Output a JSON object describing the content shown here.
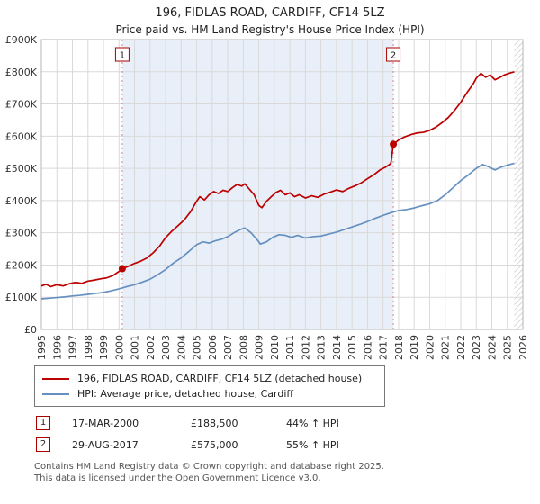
{
  "title": "196, FIDLAS ROAD, CARDIFF, CF14 5LZ",
  "subtitle": "Price paid vs. HM Land Registry's House Price Index (HPI)",
  "chart_data": {
    "type": "line",
    "x_range": [
      1995,
      2026
    ],
    "y_range": [
      0,
      900000
    ],
    "y_tick_step": 100000,
    "y_tick_labels": [
      "£0",
      "£100K",
      "£200K",
      "£300K",
      "£400K",
      "£500K",
      "£600K",
      "£700K",
      "£800K",
      "£900K"
    ],
    "grid": true,
    "legend_position": "bottom",
    "shaded_region": {
      "from": 2000.21,
      "to": 2017.66,
      "color": "#e9eff9"
    },
    "future_band": {
      "from": 2025.45,
      "to": 2026
    },
    "series": [
      {
        "name": "196, FIDLAS ROAD, CARDIFF, CF14 5LZ (detached house)",
        "color": "#bb0000",
        "points": [
          [
            1995.0,
            135000
          ],
          [
            1995.3,
            140000
          ],
          [
            1995.6,
            133000
          ],
          [
            1996.0,
            139000
          ],
          [
            1996.4,
            135000
          ],
          [
            1996.8,
            142000
          ],
          [
            1997.2,
            146000
          ],
          [
            1997.6,
            143000
          ],
          [
            1998.0,
            150000
          ],
          [
            1998.4,
            153000
          ],
          [
            1998.8,
            157000
          ],
          [
            1999.2,
            160000
          ],
          [
            1999.6,
            167000
          ],
          [
            2000.0,
            180000
          ],
          [
            2000.21,
            188500
          ],
          [
            2000.6,
            196000
          ],
          [
            2001.0,
            205000
          ],
          [
            2001.4,
            212000
          ],
          [
            2001.8,
            222000
          ],
          [
            2002.2,
            238000
          ],
          [
            2002.6,
            258000
          ],
          [
            2003.0,
            285000
          ],
          [
            2003.4,
            305000
          ],
          [
            2003.8,
            322000
          ],
          [
            2004.2,
            340000
          ],
          [
            2004.6,
            365000
          ],
          [
            2005.0,
            398000
          ],
          [
            2005.2,
            412000
          ],
          [
            2005.5,
            402000
          ],
          [
            2005.8,
            418000
          ],
          [
            2006.1,
            428000
          ],
          [
            2006.4,
            422000
          ],
          [
            2006.7,
            432000
          ],
          [
            2007.0,
            428000
          ],
          [
            2007.3,
            440000
          ],
          [
            2007.6,
            450000
          ],
          [
            2007.9,
            445000
          ],
          [
            2008.1,
            452000
          ],
          [
            2008.4,
            435000
          ],
          [
            2008.7,
            418000
          ],
          [
            2009.0,
            385000
          ],
          [
            2009.2,
            378000
          ],
          [
            2009.5,
            398000
          ],
          [
            2009.8,
            412000
          ],
          [
            2010.1,
            425000
          ],
          [
            2010.4,
            432000
          ],
          [
            2010.7,
            418000
          ],
          [
            2011.0,
            424000
          ],
          [
            2011.3,
            412000
          ],
          [
            2011.6,
            418000
          ],
          [
            2012.0,
            408000
          ],
          [
            2012.4,
            415000
          ],
          [
            2012.8,
            410000
          ],
          [
            2013.2,
            420000
          ],
          [
            2013.6,
            426000
          ],
          [
            2014.0,
            433000
          ],
          [
            2014.4,
            428000
          ],
          [
            2014.8,
            438000
          ],
          [
            2015.2,
            446000
          ],
          [
            2015.6,
            455000
          ],
          [
            2016.0,
            468000
          ],
          [
            2016.4,
            480000
          ],
          [
            2016.8,
            495000
          ],
          [
            2017.2,
            505000
          ],
          [
            2017.5,
            515000
          ],
          [
            2017.66,
            575000
          ],
          [
            2018.0,
            588000
          ],
          [
            2018.4,
            598000
          ],
          [
            2018.8,
            605000
          ],
          [
            2019.2,
            610000
          ],
          [
            2019.6,
            612000
          ],
          [
            2020.0,
            618000
          ],
          [
            2020.4,
            628000
          ],
          [
            2020.8,
            642000
          ],
          [
            2021.2,
            658000
          ],
          [
            2021.6,
            680000
          ],
          [
            2022.0,
            705000
          ],
          [
            2022.4,
            735000
          ],
          [
            2022.8,
            762000
          ],
          [
            2023.0,
            780000
          ],
          [
            2023.3,
            795000
          ],
          [
            2023.6,
            783000
          ],
          [
            2023.9,
            790000
          ],
          [
            2024.2,
            775000
          ],
          [
            2024.5,
            782000
          ],
          [
            2024.8,
            790000
          ],
          [
            2025.1,
            795000
          ],
          [
            2025.45,
            800000
          ]
        ]
      },
      {
        "name": "HPI: Average price, detached house, Cardiff",
        "color": "#6690c0",
        "points": [
          [
            1995.0,
            95000
          ],
          [
            1995.5,
            97000
          ],
          [
            1996.0,
            99000
          ],
          [
            1996.5,
            101000
          ],
          [
            1997.0,
            104000
          ],
          [
            1997.5,
            106000
          ],
          [
            1998.0,
            109000
          ],
          [
            1998.5,
            112000
          ],
          [
            1999.0,
            115000
          ],
          [
            1999.5,
            120000
          ],
          [
            2000.0,
            126000
          ],
          [
            2000.5,
            133000
          ],
          [
            2001.0,
            139000
          ],
          [
            2001.5,
            147000
          ],
          [
            2002.0,
            156000
          ],
          [
            2002.5,
            170000
          ],
          [
            2003.0,
            186000
          ],
          [
            2003.5,
            206000
          ],
          [
            2004.0,
            222000
          ],
          [
            2004.5,
            242000
          ],
          [
            2005.0,
            263000
          ],
          [
            2005.4,
            272000
          ],
          [
            2005.8,
            268000
          ],
          [
            2006.2,
            275000
          ],
          [
            2006.6,
            280000
          ],
          [
            2007.0,
            288000
          ],
          [
            2007.4,
            300000
          ],
          [
            2007.8,
            310000
          ],
          [
            2008.1,
            315000
          ],
          [
            2008.5,
            300000
          ],
          [
            2008.9,
            278000
          ],
          [
            2009.1,
            265000
          ],
          [
            2009.5,
            272000
          ],
          [
            2009.9,
            286000
          ],
          [
            2010.3,
            294000
          ],
          [
            2010.7,
            292000
          ],
          [
            2011.1,
            286000
          ],
          [
            2011.5,
            292000
          ],
          [
            2012.0,
            284000
          ],
          [
            2012.5,
            288000
          ],
          [
            2013.0,
            290000
          ],
          [
            2013.5,
            296000
          ],
          [
            2014.0,
            302000
          ],
          [
            2014.5,
            310000
          ],
          [
            2015.0,
            318000
          ],
          [
            2015.5,
            326000
          ],
          [
            2016.0,
            335000
          ],
          [
            2016.5,
            345000
          ],
          [
            2017.0,
            354000
          ],
          [
            2017.5,
            362000
          ],
          [
            2018.0,
            369000
          ],
          [
            2018.5,
            372000
          ],
          [
            2019.0,
            377000
          ],
          [
            2019.5,
            384000
          ],
          [
            2020.0,
            390000
          ],
          [
            2020.5,
            400000
          ],
          [
            2021.0,
            418000
          ],
          [
            2021.5,
            440000
          ],
          [
            2022.0,
            462000
          ],
          [
            2022.5,
            480000
          ],
          [
            2023.0,
            500000
          ],
          [
            2023.4,
            512000
          ],
          [
            2023.8,
            505000
          ],
          [
            2024.2,
            495000
          ],
          [
            2024.6,
            504000
          ],
          [
            2025.0,
            510000
          ],
          [
            2025.45,
            516000
          ]
        ]
      }
    ],
    "markers": [
      {
        "label": "1",
        "x": 2000.21,
        "y": 188500
      },
      {
        "label": "2",
        "x": 2017.66,
        "y": 575000
      }
    ]
  },
  "transactions": [
    {
      "num": "1",
      "date": "17-MAR-2000",
      "price": "£188,500",
      "hpi": "44% ↑ HPI"
    },
    {
      "num": "2",
      "date": "29-AUG-2017",
      "price": "£575,000",
      "hpi": "55% ↑ HPI"
    }
  ],
  "footer": {
    "line1": "Contains HM Land Registry data © Crown copyright and database right 2025.",
    "line2": "This data is licensed under the Open Government Licence v3.0."
  }
}
